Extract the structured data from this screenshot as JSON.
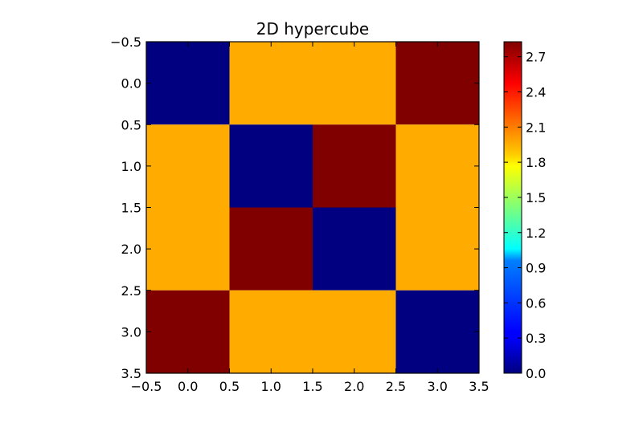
{
  "chart_data": {
    "type": "heatmap",
    "title": "2D hypercube",
    "xlabel": "",
    "ylabel": "",
    "xlim": [
      -0.5,
      3.5
    ],
    "ylim": [
      3.5,
      -0.5
    ],
    "x_ticks": [
      "−0.5",
      "0.0",
      "0.5",
      "1.0",
      "1.5",
      "2.0",
      "2.5",
      "3.0",
      "3.5"
    ],
    "y_ticks": [
      "−0.5",
      "0.0",
      "0.5",
      "1.0",
      "1.5",
      "2.0",
      "2.5",
      "3.0",
      "3.5"
    ],
    "values": [
      [
        0,
        2,
        2,
        2.828
      ],
      [
        2,
        0,
        2.828,
        2
      ],
      [
        2,
        2.828,
        0,
        2
      ],
      [
        2.828,
        2,
        2,
        0
      ]
    ],
    "colormap": "jet",
    "colorbar": {
      "range": [
        0,
        2.828
      ],
      "ticks": [
        "0.0",
        "0.3",
        "0.6",
        "0.9",
        "1.2",
        "1.5",
        "1.8",
        "2.1",
        "2.4",
        "2.7"
      ],
      "position": "right"
    },
    "grid": false
  }
}
